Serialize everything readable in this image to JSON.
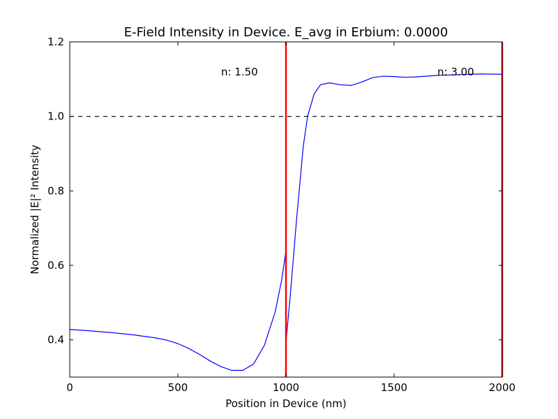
{
  "chart_data": {
    "type": "line",
    "title": "E-Field Intensity in Device. E_avg in Erbium: 0.0000",
    "xlabel": "Position in Device (nm)",
    "ylabel": "Normalized |E|² Intensity",
    "xlim": [
      0,
      2000
    ],
    "ylim": [
      0.3,
      1.2
    ],
    "xticks": [
      0,
      500,
      1000,
      1500,
      2000
    ],
    "xtick_labels": [
      "0",
      "500",
      "1000",
      "1500",
      "2000"
    ],
    "yticks": [
      0.4,
      0.6,
      0.8,
      1.0,
      1.2
    ],
    "ytick_labels": [
      "0.4",
      "0.6",
      "0.8",
      "1.0",
      "1.2"
    ],
    "grid": false,
    "reference_line": {
      "y": 1.0,
      "style": "dashed",
      "color": "#000000"
    },
    "boundaries": [
      {
        "x": 1000,
        "color": "#ff0000"
      },
      {
        "x": 2000,
        "color": "#ff0000"
      }
    ],
    "annotations": [
      {
        "text": "n: 1.50",
        "x": 700,
        "y": 1.11
      },
      {
        "text": "n: 3.00",
        "x": 1700,
        "y": 1.11
      }
    ],
    "series": [
      {
        "color": "#0000ff",
        "x": [
          0,
          100,
          200,
          300,
          400,
          450,
          500,
          550,
          600,
          650,
          700,
          750,
          800,
          850,
          900,
          950,
          980,
          1000,
          1001,
          1020,
          1050,
          1080,
          1100,
          1130,
          1160,
          1200,
          1250,
          1300,
          1350,
          1400,
          1450,
          1500,
          1550,
          1600,
          1700,
          1800,
          1900,
          2000
        ],
        "y": [
          0.428,
          0.424,
          0.419,
          0.413,
          0.405,
          0.399,
          0.39,
          0.377,
          0.361,
          0.343,
          0.328,
          0.318,
          0.318,
          0.335,
          0.385,
          0.475,
          0.56,
          0.64,
          0.4,
          0.52,
          0.73,
          0.92,
          1.0,
          1.06,
          1.085,
          1.09,
          1.085,
          1.083,
          1.092,
          1.104,
          1.108,
          1.107,
          1.105,
          1.106,
          1.11,
          1.112,
          1.114,
          1.113
        ]
      }
    ]
  }
}
